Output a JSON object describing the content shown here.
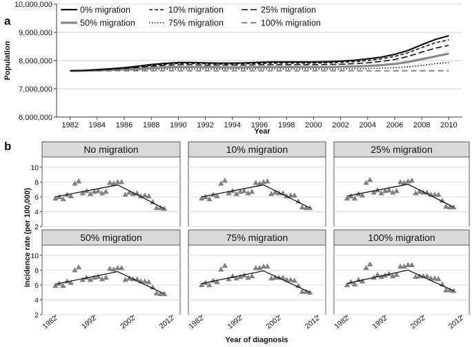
{
  "panel_a": {
    "letter": "a",
    "ylabel": "Population",
    "xlabel": "Year",
    "yticks": [
      "6,000,000",
      "7,000,000",
      "8,000,000",
      "9,000,000",
      "10,000,000"
    ],
    "xticks": [
      "1982",
      "1984",
      "1986",
      "1988",
      "1990",
      "1992",
      "1994",
      "1996",
      "1998",
      "2000",
      "2002",
      "2004",
      "2006",
      "2008",
      "2010"
    ],
    "legend": [
      "0% migration",
      "10% migration",
      "25% migration",
      "50% migration",
      "75% migration",
      "100% migration"
    ]
  },
  "panel_b": {
    "letter": "b",
    "ylabel": "Incidence rate (per 100,000)",
    "xlabel": "Year of diagnosis",
    "yticks": [
      "2",
      "4",
      "6",
      "8",
      "10"
    ],
    "xticks": [
      "1982",
      "1992",
      "2002",
      "2012"
    ],
    "facets": [
      "No migration",
      "10% migration",
      "25% migration",
      "50% migration",
      "75% migration",
      "100% migration"
    ]
  },
  "chart_data": [
    {
      "type": "line",
      "title": "",
      "xlabel": "Year",
      "ylabel": "Population",
      "xlim": [
        1981,
        2011
      ],
      "ylim": [
        6000000,
        10000000
      ],
      "grid": true,
      "legend_position": "top-left",
      "x": [
        1982,
        1983,
        1984,
        1985,
        1986,
        1987,
        1988,
        1989,
        1990,
        1991,
        1992,
        1993,
        1994,
        1995,
        1996,
        1997,
        1998,
        1999,
        2000,
        2001,
        2002,
        2003,
        2004,
        2005,
        2006,
        2007,
        2008,
        2009,
        2010
      ],
      "series": [
        {
          "name": "0% migration",
          "color": "#111111",
          "style": "solid",
          "values": [
            7640000,
            7650000,
            7680000,
            7710000,
            7750000,
            7800000,
            7860000,
            7900000,
            7930000,
            7930000,
            7920000,
            7910000,
            7910000,
            7920000,
            7940000,
            7950000,
            7950000,
            7950000,
            7950000,
            7960000,
            7980000,
            8010000,
            8060000,
            8120000,
            8220000,
            8360000,
            8560000,
            8750000,
            8880000
          ]
        },
        {
          "name": "10% migration",
          "color": "#111111",
          "style": "dense-dash",
          "values": [
            7640000,
            7650000,
            7670000,
            7700000,
            7740000,
            7780000,
            7830000,
            7870000,
            7900000,
            7900000,
            7890000,
            7880000,
            7880000,
            7890000,
            7900000,
            7910000,
            7910000,
            7910000,
            7910000,
            7920000,
            7940000,
            7960000,
            8000000,
            8060000,
            8150000,
            8280000,
            8460000,
            8630000,
            8740000
          ]
        },
        {
          "name": "25% migration",
          "color": "#111111",
          "style": "long-dash",
          "values": [
            7640000,
            7650000,
            7660000,
            7690000,
            7720000,
            7760000,
            7800000,
            7830000,
            7850000,
            7850000,
            7840000,
            7840000,
            7840000,
            7840000,
            7850000,
            7850000,
            7850000,
            7850000,
            7850000,
            7860000,
            7870000,
            7890000,
            7920000,
            7970000,
            8040000,
            8150000,
            8300000,
            8440000,
            8540000
          ]
        },
        {
          "name": "50% migration",
          "color": "#888888",
          "style": "solid-thick",
          "values": [
            7640000,
            7640000,
            7650000,
            7670000,
            7690000,
            7710000,
            7740000,
            7760000,
            7770000,
            7770000,
            7770000,
            7760000,
            7760000,
            7760000,
            7770000,
            7770000,
            7770000,
            7770000,
            7770000,
            7770000,
            7780000,
            7790000,
            7810000,
            7840000,
            7880000,
            7950000,
            8050000,
            8150000,
            8250000
          ]
        },
        {
          "name": "75% migration",
          "color": "#111111",
          "style": "dotted",
          "values": [
            7640000,
            7640000,
            7640000,
            7650000,
            7660000,
            7670000,
            7690000,
            7700000,
            7700000,
            7700000,
            7700000,
            7700000,
            7700000,
            7700000,
            7700000,
            7700000,
            7700000,
            7700000,
            7700000,
            7700000,
            7700000,
            7710000,
            7720000,
            7730000,
            7750000,
            7780000,
            7830000,
            7890000,
            7930000
          ]
        },
        {
          "name": "100% migration",
          "color": "#888888",
          "style": "gray-dash",
          "values": [
            7640000,
            7640000,
            7640000,
            7640000,
            7640000,
            7640000,
            7640000,
            7640000,
            7640000,
            7640000,
            7640000,
            7640000,
            7640000,
            7640000,
            7640000,
            7640000,
            7640000,
            7640000,
            7640000,
            7640000,
            7640000,
            7640000,
            7640000,
            7640000,
            7640000,
            7640000,
            7640000,
            7640000,
            7640000
          ]
        }
      ]
    },
    {
      "type": "scatter",
      "title": "",
      "xlabel": "Year of diagnosis",
      "ylabel": "Incidence rate (per 100,000)",
      "xlim": [
        1980,
        2013
      ],
      "ylim": [
        2,
        11
      ],
      "grid": true,
      "marker": "triangle",
      "marker_color": "#808080",
      "trend_color": "#111111",
      "x": [
        1982,
        1983,
        1984,
        1985,
        1986,
        1987,
        1988,
        1989,
        1990,
        1991,
        1992,
        1993,
        1994,
        1995,
        1996,
        1997,
        1998,
        1999,
        2000,
        2001,
        2002,
        2003,
        2004,
        2005,
        2006,
        2007,
        2008,
        2009,
        2010
      ],
      "facets": [
        {
          "name": "No migration",
          "values": [
            5.8,
            6.0,
            5.7,
            6.3,
            6.1,
            7.8,
            8.1,
            6.5,
            6.8,
            6.4,
            6.7,
            6.8,
            6.5,
            6.7,
            7.9,
            7.8,
            8.0,
            8.0,
            6.3,
            6.6,
            6.4,
            6.5,
            6.1,
            6.2,
            6.1,
            5.3,
            4.5,
            4.5,
            4.4
          ],
          "trend": [
            [
              1982,
              6.0
            ],
            [
              1998,
              7.6
            ],
            [
              2010,
              4.4
            ]
          ]
        },
        {
          "name": "10% migration",
          "values": [
            5.8,
            6.0,
            5.7,
            6.3,
            6.1,
            7.8,
            8.2,
            6.5,
            6.8,
            6.4,
            6.7,
            6.8,
            6.5,
            6.7,
            7.9,
            7.8,
            8.0,
            8.1,
            6.4,
            6.6,
            6.5,
            6.5,
            6.1,
            6.2,
            6.2,
            5.4,
            4.6,
            4.5,
            4.5
          ],
          "trend": [
            [
              1982,
              6.0
            ],
            [
              1998,
              7.6
            ],
            [
              2010,
              4.5
            ]
          ]
        },
        {
          "name": "25% migration",
          "values": [
            5.8,
            6.1,
            5.8,
            6.4,
            6.2,
            7.9,
            8.3,
            6.6,
            6.9,
            6.5,
            6.8,
            6.9,
            6.6,
            6.8,
            8.0,
            7.9,
            8.1,
            8.2,
            6.5,
            6.7,
            6.6,
            6.6,
            6.3,
            6.3,
            6.3,
            5.5,
            4.7,
            4.6,
            4.6
          ],
          "trend": [
            [
              1982,
              6.1
            ],
            [
              1998,
              7.7
            ],
            [
              2010,
              4.6
            ]
          ]
        },
        {
          "name": "50% migration",
          "values": [
            5.9,
            6.2,
            5.9,
            6.5,
            6.3,
            8.0,
            8.4,
            6.7,
            7.0,
            6.7,
            7.0,
            7.1,
            6.8,
            7.0,
            8.2,
            8.1,
            8.3,
            8.3,
            6.7,
            6.9,
            6.8,
            6.8,
            6.5,
            6.5,
            6.4,
            5.7,
            4.9,
            4.8,
            4.8
          ],
          "trend": [
            [
              1982,
              6.1
            ],
            [
              1998,
              7.8
            ],
            [
              2010,
              4.8
            ]
          ]
        },
        {
          "name": "75% migration",
          "values": [
            6.0,
            6.3,
            6.0,
            6.6,
            6.4,
            8.1,
            8.6,
            6.8,
            7.2,
            6.9,
            7.1,
            7.3,
            7.0,
            7.2,
            8.3,
            8.3,
            8.5,
            8.5,
            6.9,
            7.0,
            7.0,
            7.0,
            6.7,
            6.7,
            6.6,
            5.9,
            5.1,
            5.1,
            5.0
          ],
          "trend": [
            [
              1982,
              6.2
            ],
            [
              1998,
              7.9
            ],
            [
              2010,
              5.0
            ]
          ]
        },
        {
          "name": "100% migration",
          "values": [
            6.0,
            6.4,
            6.1,
            6.7,
            6.5,
            8.3,
            8.8,
            7.0,
            7.4,
            7.1,
            7.3,
            7.5,
            7.2,
            7.4,
            8.5,
            8.5,
            8.7,
            8.7,
            7.1,
            7.2,
            7.2,
            7.2,
            6.9,
            6.9,
            6.8,
            6.1,
            5.3,
            5.3,
            5.2
          ],
          "trend": [
            [
              1982,
              6.2
            ],
            [
              1998,
              8.0
            ],
            [
              2010,
              5.2
            ]
          ]
        }
      ]
    }
  ]
}
